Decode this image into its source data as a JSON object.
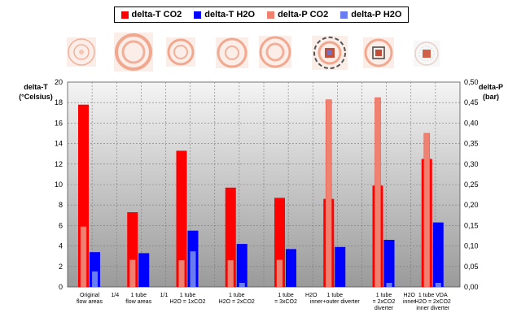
{
  "chart_data": {
    "type": "bar",
    "legend": [
      {
        "label": "delta-T CO2",
        "color": "#ff0000"
      },
      {
        "label": "delta-T H2O",
        "color": "#0000ff"
      },
      {
        "label": "delta-P CO2",
        "color": "#f08070"
      },
      {
        "label": "delta-P H2O",
        "color": "#6a7df0"
      }
    ],
    "left_axis": {
      "title_line1": "delta-T",
      "title_line2": "(°Celsius)",
      "range": [
        0,
        20
      ],
      "ticks": [
        "0",
        "2",
        "4",
        "6",
        "8",
        "10",
        "12",
        "14",
        "16",
        "18",
        "20"
      ]
    },
    "right_axis": {
      "title_line1": "delta-P",
      "title_line2": "(bar)",
      "range": [
        0,
        0.5
      ],
      "ticks": [
        "0,00",
        "0,05",
        "0,10",
        "0,15",
        "0,20",
        "0,25",
        "0,30",
        "0,35",
        "0,40",
        "0,45",
        "0,50"
      ]
    },
    "categories": [
      {
        "line1": "Original",
        "line2": "flow areas",
        "line3": ""
      },
      {
        "line1": "1 tube",
        "line2": "flow areas",
        "line3": ""
      },
      {
        "line1": "1 tube",
        "line2": "H2O = 1xCO2",
        "line3": ""
      },
      {
        "line1": "1 tube",
        "line2": "H2O = 2xCO2",
        "line3": ""
      },
      {
        "line1": "1 tube",
        "line2": "= 3xCO2",
        "line3": ""
      },
      {
        "line1": "1 tube",
        "line2": "inner+outer diverter",
        "line3": ""
      },
      {
        "line1": "1 tube",
        "line2": "= 2xCO2",
        "line3": "diverter"
      },
      {
        "line1": "1 tube VDA",
        "line2": "H2O = 2xCO2",
        "line3": "inner diverter"
      }
    ],
    "between_labels": [
      {
        "after": 0,
        "text": "1/4"
      },
      {
        "after": 1,
        "text": "1/1"
      },
      {
        "after": 4,
        "text": "H2O"
      },
      {
        "after": 6,
        "text": "H2O"
      },
      {
        "after": 6,
        "text": "inner"
      }
    ],
    "series": [
      {
        "name": "delta-T CO2",
        "axis": "left",
        "values": [
          17.8,
          7.3,
          13.3,
          9.7,
          8.7,
          8.6,
          9.9,
          12.5
        ]
      },
      {
        "name": "delta-T H2O",
        "axis": "left",
        "values": [
          3.4,
          3.3,
          5.5,
          4.2,
          3.7,
          3.9,
          4.6,
          6.3
        ]
      },
      {
        "name": "delta-P CO2",
        "axis": "right",
        "values": [
          0.147,
          0.066,
          0.065,
          0.065,
          0.066,
          0.457,
          0.462,
          0.375
        ]
      },
      {
        "name": "delta-P H2O",
        "axis": "right",
        "values": [
          0.038,
          0.0,
          0.087,
          0.01,
          0.0,
          0.0,
          0.01,
          0.01
        ]
      }
    ],
    "grid": true,
    "legend_position": "top"
  }
}
